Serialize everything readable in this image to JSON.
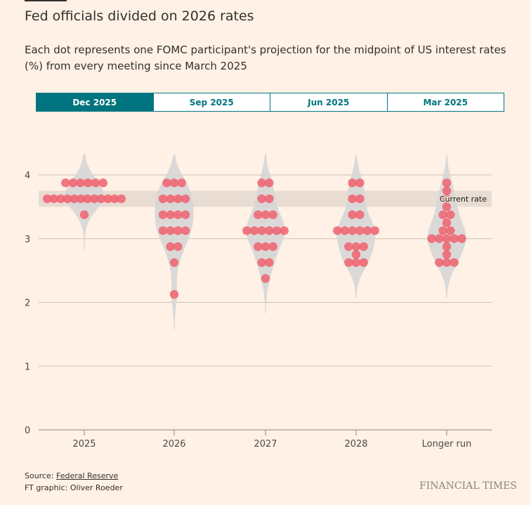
{
  "title": "Fed officials divided on 2026 rates",
  "subtitle": "Each dot represents one FOMC participant's projection for the midpoint of US interest rates (%) from every meeting since March 2025",
  "tabs": [
    {
      "label": "Dec 2025",
      "active": true
    },
    {
      "label": "Sep 2025",
      "active": false
    },
    {
      "label": "Jun 2025",
      "active": false
    },
    {
      "label": "Mar 2025",
      "active": false
    }
  ],
  "chart_data": {
    "type": "scatter",
    "subtype": "beeswarm with violin density",
    "categories": [
      "2025",
      "2026",
      "2027",
      "2028",
      "Longer run"
    ],
    "y_ticks": [
      "0",
      "1",
      "2",
      "3",
      "4"
    ],
    "ylim": [
      0,
      4.3
    ],
    "grid": true,
    "dot_color": "#f0606e",
    "violin_color": "#d6d6d6",
    "current_rate": {
      "label": "Current rate",
      "range": [
        3.5,
        3.75
      ],
      "color": "#e8dcd3"
    },
    "series": [
      {
        "category": "2025",
        "values": [
          3.875,
          3.875,
          3.875,
          3.875,
          3.875,
          3.875,
          3.625,
          3.625,
          3.625,
          3.625,
          3.625,
          3.625,
          3.625,
          3.625,
          3.625,
          3.625,
          3.625,
          3.625,
          3.375
        ]
      },
      {
        "category": "2026",
        "values": [
          3.875,
          3.875,
          3.875,
          3.625,
          3.625,
          3.625,
          3.625,
          3.375,
          3.375,
          3.375,
          3.375,
          3.125,
          3.125,
          3.125,
          3.125,
          2.875,
          2.875,
          2.625,
          2.125
        ]
      },
      {
        "category": "2027",
        "values": [
          3.875,
          3.875,
          3.625,
          3.625,
          3.375,
          3.375,
          3.375,
          3.125,
          3.125,
          3.125,
          3.125,
          3.125,
          3.125,
          2.875,
          2.875,
          2.875,
          2.625,
          2.625,
          2.375
        ]
      },
      {
        "category": "2028",
        "values": [
          3.875,
          3.875,
          3.625,
          3.625,
          3.375,
          3.375,
          3.125,
          3.125,
          3.125,
          3.125,
          3.125,
          3.125,
          2.875,
          2.875,
          2.875,
          2.75,
          2.625,
          2.625,
          2.625
        ]
      },
      {
        "category": "Longer run",
        "values": [
          3.875,
          3.75,
          3.625,
          3.5,
          3.375,
          3.375,
          3.25,
          3.125,
          3.125,
          3.0,
          3.0,
          3.0,
          3.0,
          3.0,
          2.875,
          2.75,
          2.625,
          2.625,
          2.625
        ]
      }
    ]
  },
  "footer": {
    "source_label": "Source: ",
    "source_link": "Federal Reserve",
    "credit": "FT graphic: Oliver Roeder",
    "logo": "FINANCIAL TIMES"
  }
}
